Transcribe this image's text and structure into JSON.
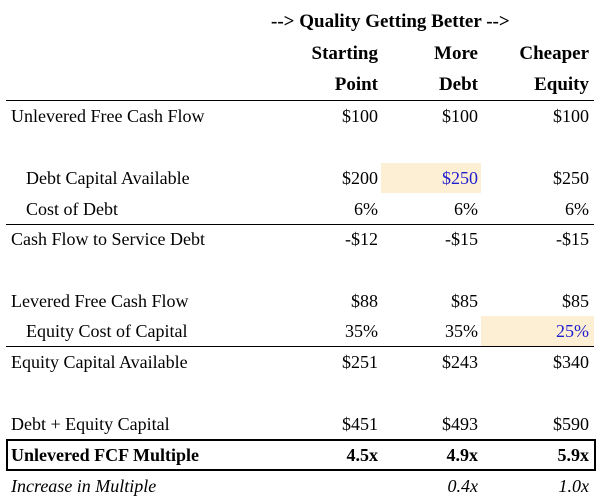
{
  "banner": "--> Quality Getting Better -->",
  "columns": [
    {
      "line1": "Starting",
      "line2": "Point"
    },
    {
      "line1": "More",
      "line2": "Debt"
    },
    {
      "line1": "Cheaper",
      "line2": "Equity"
    }
  ],
  "rows": {
    "ufcf": {
      "label": "Unlevered Free Cash Flow",
      "values": [
        "$100",
        "$100",
        "$100"
      ]
    },
    "debt_cap": {
      "label": "Debt Capital Available",
      "values": [
        "$200",
        "$250",
        "$250"
      ]
    },
    "cost_debt": {
      "label": "Cost of Debt",
      "values": [
        "6%",
        "6%",
        "6%"
      ]
    },
    "cf_service": {
      "label": "Cash Flow to Service Debt",
      "values": [
        "-$12",
        "-$15",
        "-$15"
      ]
    },
    "lfcf": {
      "label": "Levered Free Cash Flow",
      "values": [
        "$88",
        "$85",
        "$85"
      ]
    },
    "eq_cost": {
      "label": "Equity Cost of Capital",
      "values": [
        "35%",
        "35%",
        "25%"
      ]
    },
    "eq_cap": {
      "label": "Equity Capital Available",
      "values": [
        "$251",
        "$243",
        "$340"
      ]
    },
    "de_cap": {
      "label": "Debt + Equity Capital",
      "values": [
        "$451",
        "$493",
        "$590"
      ]
    },
    "multiple": {
      "label": "Unlevered FCF Multiple",
      "values": [
        "4.5x",
        "4.9x",
        "5.9x"
      ]
    },
    "increase": {
      "label": "Increase in Multiple",
      "values": [
        "",
        "0.4x",
        "1.0x"
      ]
    }
  },
  "colors": {
    "highlight": "#fdefd4",
    "changed_value": "#1f1fcf"
  }
}
